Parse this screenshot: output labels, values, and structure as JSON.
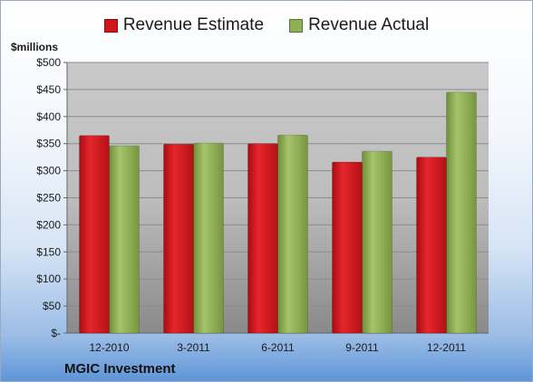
{
  "unit_label": "$millions",
  "company": "MGIC Investment",
  "colors": {
    "estimate": "#d0161c",
    "actual": "#8fb052"
  },
  "chart_data": {
    "type": "bar",
    "categories": [
      "12-2010",
      "3-2011",
      "6-2011",
      "9-2011",
      "12-2011"
    ],
    "series": [
      {
        "name": "Revenue Estimate",
        "values": [
          365,
          349,
          350,
          316,
          325
        ]
      },
      {
        "name": "Revenue Actual",
        "values": [
          346,
          351,
          366,
          336,
          445
        ]
      }
    ],
    "ylim": [
      0,
      500
    ],
    "yticks": [
      0,
      50,
      100,
      150,
      200,
      250,
      300,
      350,
      400,
      450,
      500
    ],
    "ytick_labels": [
      "$-",
      "$50",
      "$100",
      "$150",
      "$200",
      "$250",
      "$300",
      "$350",
      "$400",
      "$450",
      "$500"
    ],
    "legend": "top-center",
    "grid": true
  }
}
